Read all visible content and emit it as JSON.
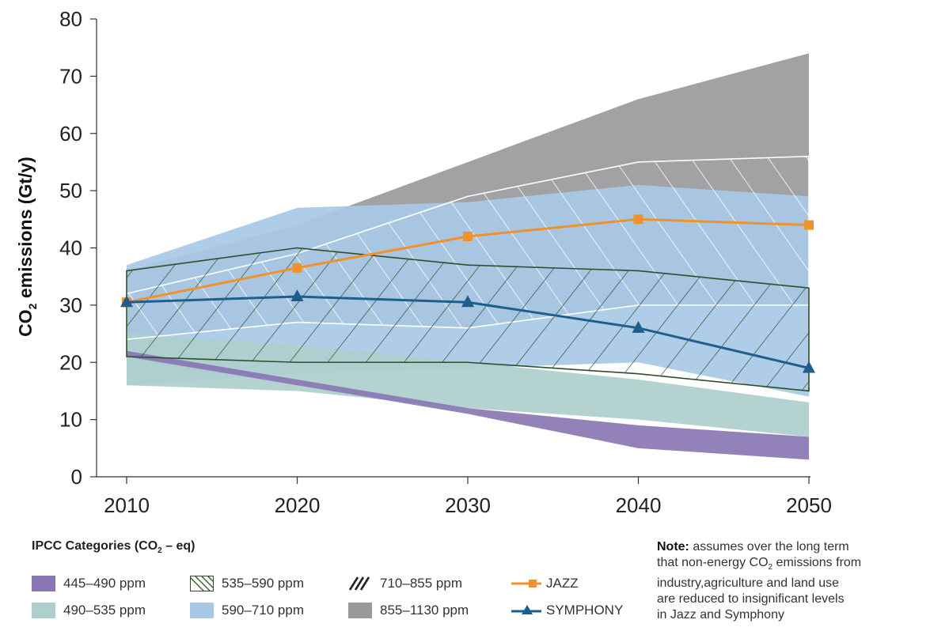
{
  "chart_data": {
    "type": "area",
    "ylabel": "CO2 emissions (Gt/y)",
    "ylabel_parts": {
      "prefix": "CO",
      "sub": "2",
      "suffix": " emissions (Gt/y)"
    },
    "x_ticks": [
      "2010",
      "2020",
      "2030",
      "2040",
      "2050"
    ],
    "y_ticks": [
      "0",
      "10",
      "20",
      "30",
      "40",
      "50",
      "60",
      "70",
      "80"
    ],
    "xlim": [
      2010,
      2050
    ],
    "ylim": [
      0,
      80
    ],
    "grid": false,
    "bands": [
      {
        "name": "855–1130 ppm",
        "color": "#9a9a9c",
        "pattern": "none",
        "x": [
          2010,
          2020,
          2030,
          2040,
          2050
        ],
        "upper": [
          36,
          44,
          55,
          66,
          74
        ],
        "lower": [
          24,
          27,
          26,
          30,
          30
        ]
      },
      {
        "name": "590–710 ppm",
        "color": "#a8c8e6",
        "pattern": "none",
        "x": [
          2010,
          2020,
          2030,
          2040,
          2050
        ],
        "upper": [
          37,
          47,
          48,
          51,
          49
        ],
        "lower": [
          16,
          18,
          19,
          20,
          14
        ]
      },
      {
        "name": "490–535 ppm",
        "color": "#aecfcc",
        "pattern": "none",
        "x": [
          2010,
          2020,
          2030,
          2040,
          2050
        ],
        "upper": [
          25,
          23,
          20,
          17,
          13
        ],
        "lower": [
          16,
          15,
          12,
          10,
          7
        ]
      },
      {
        "name": "445–490 ppm",
        "color": "#8a76b4",
        "pattern": "none",
        "x": [
          2010,
          2020,
          2030,
          2040,
          2050
        ],
        "upper": [
          22,
          17,
          12,
          9,
          7
        ],
        "lower": [
          21,
          16,
          11,
          5,
          3
        ]
      },
      {
        "name": "710–855 ppm",
        "color": "#ffffff",
        "pattern": "hatch-dense",
        "x": [
          2010,
          2020,
          2030,
          2040,
          2050
        ],
        "upper": [
          32,
          39,
          49,
          55,
          56
        ],
        "lower": [
          24,
          27,
          26,
          30,
          30
        ]
      },
      {
        "name": "535–590 ppm",
        "color": "#2f4f2a",
        "pattern": "hatch-sparse",
        "x": [
          2010,
          2020,
          2030,
          2040,
          2050
        ],
        "upper": [
          36,
          40,
          37,
          36,
          33
        ],
        "lower": [
          21,
          20,
          20,
          18,
          15
        ]
      }
    ],
    "series": [
      {
        "name": "JAZZ",
        "color": "#f0922b",
        "marker": "square",
        "x": [
          2010,
          2020,
          2030,
          2040,
          2050
        ],
        "values": [
          30.5,
          36.5,
          42,
          45,
          44
        ]
      },
      {
        "name": "SYMPHONY",
        "color": "#1f5e8c",
        "marker": "triangle",
        "x": [
          2010,
          2020,
          2030,
          2040,
          2050
        ],
        "values": [
          30.5,
          31.5,
          30.5,
          26,
          19
        ]
      }
    ]
  },
  "legend": {
    "title_prefix": "IPCC Categories (CO",
    "title_sub": "2",
    "title_suffix": " – eq)",
    "items": [
      {
        "label": "445–490 ppm",
        "kind": "fill",
        "color": "#8a76b4"
      },
      {
        "label": "490–535 ppm",
        "kind": "fill",
        "color": "#aecfcc"
      },
      {
        "label": "535–590 ppm",
        "kind": "hatch-sparse",
        "color": "#2f4f2a"
      },
      {
        "label": "590–710 ppm",
        "kind": "fill",
        "color": "#a8c8e6"
      },
      {
        "label": "710–855 ppm",
        "kind": "hatch-dense",
        "color": "#222222"
      },
      {
        "label": "855–1130 ppm",
        "kind": "fill",
        "color": "#9a9a9c"
      },
      {
        "label": "JAZZ",
        "kind": "line-square",
        "color": "#f0922b"
      },
      {
        "label": "SYMPHONY",
        "kind": "line-triangle",
        "color": "#1f5e8c"
      }
    ]
  },
  "note": {
    "bold": "Note:",
    "line1": " assumes over the long term",
    "line2_prefix": "that non-energy CO",
    "line2_sub": "2",
    "line2_suffix": " emissions from",
    "line3": "industry,agriculture and land use",
    "line4": "are reduced to insignificant levels",
    "line5": "in Jazz and Symphony"
  }
}
